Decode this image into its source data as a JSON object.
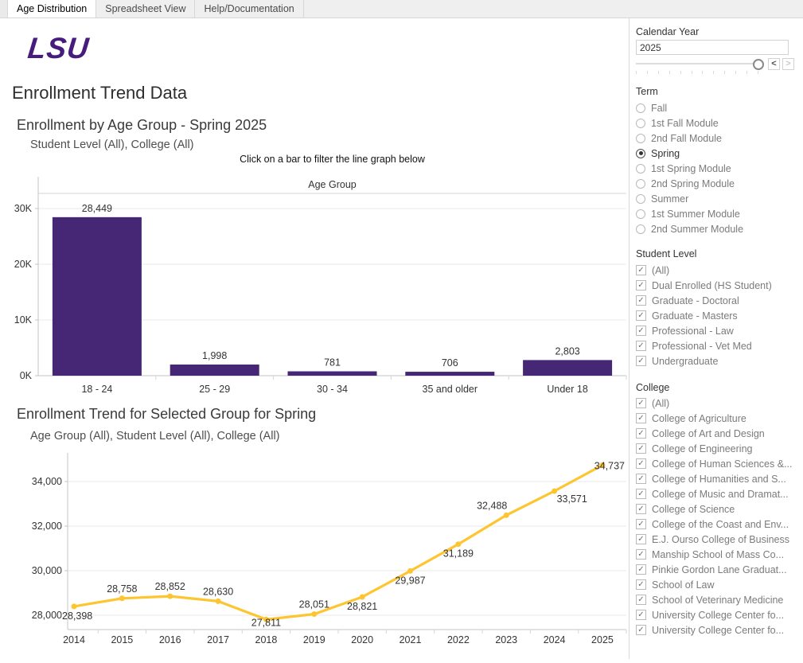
{
  "window": {
    "tabs": [
      {
        "label": "Age Distribution",
        "active": true
      },
      {
        "label": "Spreadsheet View",
        "active": false
      },
      {
        "label": "Help/Documentation",
        "active": false
      }
    ]
  },
  "logo_text": "LSU",
  "page_title": "Enrollment Trend Data",
  "icons": {
    "chevron_left": "<",
    "chevron_right": ">",
    "checkbox_check": "✓"
  },
  "colors": {
    "lsu_purple": "#461D7C",
    "bar_purple": "#462776",
    "line_gold": "#FDC530"
  },
  "chart_data": [
    {
      "type": "bar",
      "title": "Enrollment by Age Group - Spring 2025",
      "subtitle": "Student Level (All), College (All)",
      "caption": "Click on a bar to filter the line graph below",
      "column_header": "Age Group",
      "categories": [
        "18 - 24",
        "25 - 29",
        "30 - 34",
        "35 and older",
        "Under 18"
      ],
      "values": [
        28449,
        1998,
        781,
        706,
        2803
      ],
      "value_labels": [
        "28,449",
        "1,998",
        "781",
        "706",
        "2,803"
      ],
      "xlabel": "Age Group",
      "ylabel": "",
      "yticks": [
        0,
        10000,
        20000,
        30000
      ],
      "ytick_labels": [
        "0K",
        "10K",
        "20K",
        "30K"
      ],
      "ylim": [
        0,
        32500
      ],
      "grid": true,
      "bar_color": "#462776"
    },
    {
      "type": "line",
      "title": "Enrollment Trend for Selected Group for Spring",
      "subtitle": "Age Group (All), Student Level (All), College (All)",
      "x": [
        2014,
        2015,
        2016,
        2017,
        2018,
        2019,
        2020,
        2021,
        2022,
        2023,
        2024,
        2025
      ],
      "x_labels": [
        "2014",
        "2015",
        "2016",
        "2017",
        "2018",
        "2019",
        "2020",
        "2021",
        "2022",
        "2023",
        "2024",
        "2025"
      ],
      "values": [
        28398,
        28758,
        28852,
        28630,
        27811,
        28051,
        28821,
        29987,
        31189,
        32488,
        33571,
        34737
      ],
      "value_labels": [
        "28,398",
        "28,758",
        "28,852",
        "28,630",
        "27,811",
        "28,051",
        "28,821",
        "29,987",
        "31,189",
        "32,488",
        "33,571",
        "34,737"
      ],
      "label_pos": [
        "left-below",
        "above",
        "above",
        "above",
        "below-near",
        "above",
        "below",
        "below",
        "below",
        "above-left",
        "below-right",
        "flush-right"
      ],
      "xlabel": "",
      "ylabel": "",
      "yticks": [
        28000,
        30000,
        32000,
        34000
      ],
      "ytick_labels": [
        "28,000",
        "30,000",
        "32,000",
        "34,000"
      ],
      "ylim": [
        27450,
        35300
      ],
      "grid": true,
      "line_color": "#FDC530"
    }
  ],
  "filters": {
    "calendar_year": {
      "label": "Calendar Year",
      "value": "2025"
    },
    "term": {
      "label": "Term",
      "selected": "Spring",
      "options": [
        "Fall",
        "1st Fall Module",
        "2nd Fall Module",
        "Spring",
        "1st Spring Module",
        "2nd Spring Module",
        "Summer",
        "1st Summer Module",
        "2nd Summer Module"
      ]
    },
    "student_level": {
      "label": "Student Level",
      "all_checked": true,
      "options": [
        "(All)",
        "Dual Enrolled (HS Student)",
        "Graduate - Doctoral",
        "Graduate - Masters",
        "Professional - Law",
        "Professional - Vet Med",
        "Undergraduate"
      ]
    },
    "college": {
      "label": "College",
      "all_checked": true,
      "options": [
        "(All)",
        "College of Agriculture",
        "College of Art and Design",
        "College of Engineering",
        "College of Human Sciences &...",
        "College of Humanities and S...",
        "College of Music and Dramat...",
        "College of Science",
        "College of the Coast and Env...",
        "E.J. Ourso College of Business",
        "Manship School of Mass Co...",
        "Pinkie Gordon Lane Graduat...",
        "School of Law",
        "School of Veterinary Medicine",
        "University College Center fo...",
        "University College Center fo..."
      ]
    }
  }
}
